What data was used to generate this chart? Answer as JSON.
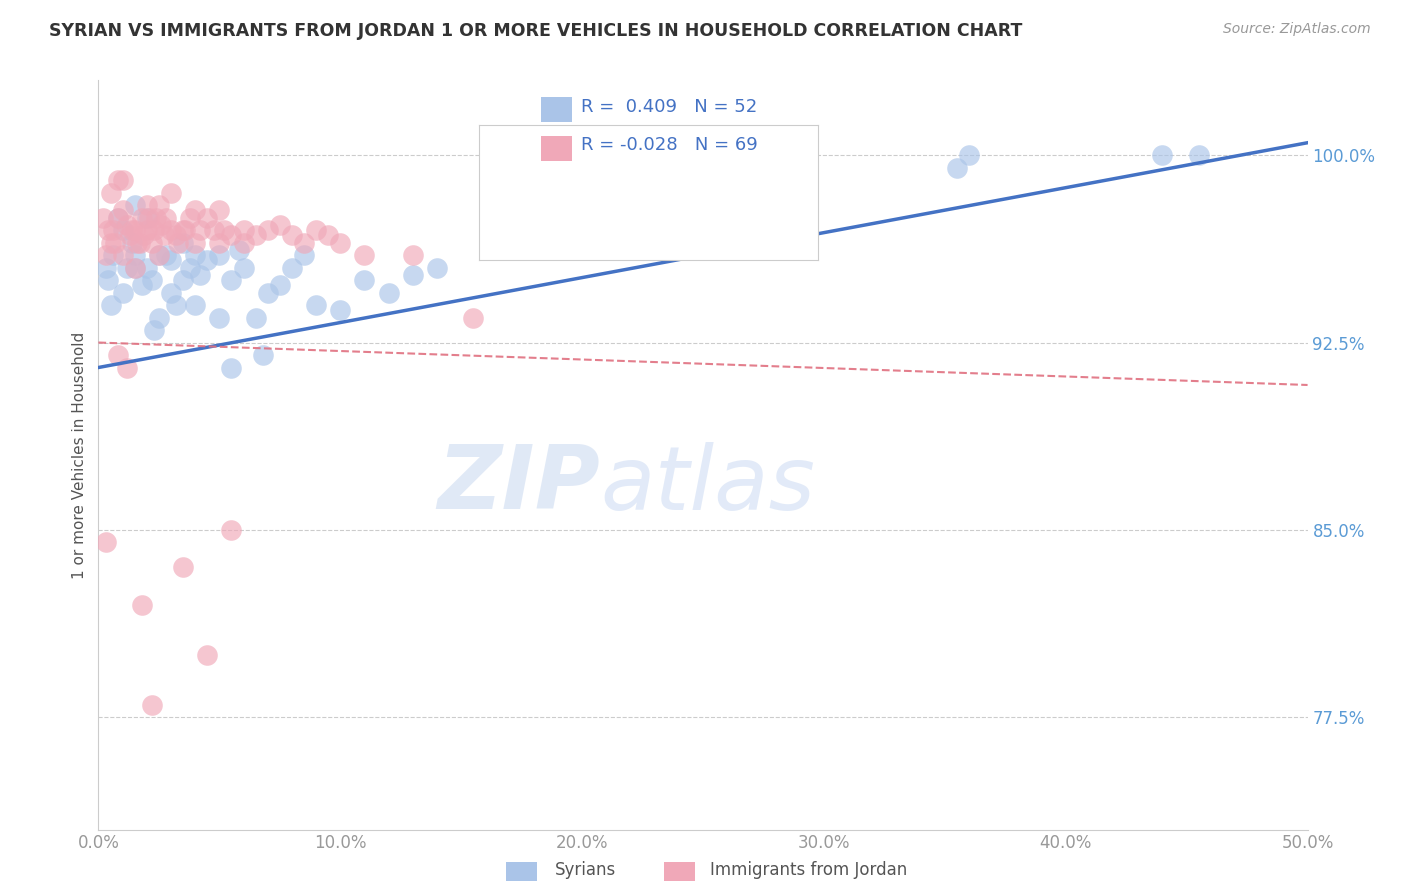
{
  "title": "SYRIAN VS IMMIGRANTS FROM JORDAN 1 OR MORE VEHICLES IN HOUSEHOLD CORRELATION CHART",
  "source": "Source: ZipAtlas.com",
  "ylabel": "1 or more Vehicles in Household",
  "xlim": [
    0.0,
    50.0
  ],
  "ylim": [
    73.0,
    103.0
  ],
  "xtick_labels": [
    "0.0%",
    "10.0%",
    "20.0%",
    "30.0%",
    "40.0%",
    "50.0%"
  ],
  "xtick_values": [
    0.0,
    10.0,
    20.0,
    30.0,
    40.0,
    50.0
  ],
  "ytick_labels": [
    "77.5%",
    "85.0%",
    "92.5%",
    "100.0%"
  ],
  "ytick_values": [
    77.5,
    85.0,
    92.5,
    100.0
  ],
  "syrians_R": 0.409,
  "syrians_N": 52,
  "jordan_R": -0.028,
  "jordan_N": 69,
  "syrians_color": "#aac4e8",
  "jordan_color": "#f0a8b8",
  "syrians_line_color": "#4472c4",
  "jordan_line_color": "#e07080",
  "watermark_color": "#ddeeff",
  "syrians_x": [
    0.4,
    0.6,
    0.8,
    1.0,
    1.0,
    1.2,
    1.4,
    1.5,
    1.5,
    1.8,
    2.0,
    2.0,
    2.2,
    2.5,
    2.5,
    2.8,
    3.0,
    3.0,
    3.2,
    3.5,
    3.8,
    4.0,
    4.0,
    4.2,
    4.5,
    5.0,
    5.0,
    5.5,
    5.8,
    6.0,
    6.5,
    7.0,
    7.5,
    8.0,
    9.0,
    10.0,
    11.0,
    12.0,
    13.0,
    14.0,
    5.5,
    6.8,
    35.5,
    36.0,
    44.0,
    45.5,
    0.3,
    0.5,
    1.5,
    2.3,
    3.5,
    8.5
  ],
  "syrians_y": [
    95.0,
    96.0,
    97.5,
    94.5,
    97.0,
    95.5,
    96.5,
    95.5,
    98.0,
    94.8,
    95.5,
    97.5,
    95.0,
    93.5,
    96.0,
    96.0,
    94.5,
    95.8,
    94.0,
    95.0,
    95.5,
    96.0,
    94.0,
    95.2,
    95.8,
    93.5,
    96.0,
    95.0,
    96.2,
    95.5,
    93.5,
    94.5,
    94.8,
    95.5,
    94.0,
    93.8,
    95.0,
    94.5,
    95.2,
    95.5,
    91.5,
    92.0,
    99.5,
    100.0,
    100.0,
    100.0,
    95.5,
    94.0,
    96.0,
    93.0,
    96.5,
    96.0
  ],
  "jordan_x": [
    0.2,
    0.3,
    0.4,
    0.5,
    0.5,
    0.6,
    0.7,
    0.8,
    0.8,
    1.0,
    1.0,
    1.0,
    1.2,
    1.3,
    1.4,
    1.5,
    1.5,
    1.6,
    1.7,
    1.8,
    1.9,
    2.0,
    2.0,
    2.1,
    2.2,
    2.3,
    2.4,
    2.5,
    2.5,
    2.6,
    2.7,
    2.8,
    3.0,
    3.0,
    3.2,
    3.3,
    3.5,
    3.6,
    3.8,
    4.0,
    4.0,
    4.2,
    4.5,
    4.8,
    5.0,
    5.0,
    5.2,
    5.5,
    6.0,
    6.0,
    6.5,
    7.0,
    7.5,
    8.0,
    8.5,
    9.0,
    9.5,
    10.0,
    11.0,
    13.0,
    15.5,
    5.5,
    0.3,
    3.5,
    1.8,
    4.5,
    2.2,
    0.8,
    1.2
  ],
  "jordan_y": [
    97.5,
    96.0,
    97.0,
    96.5,
    98.5,
    97.0,
    96.5,
    97.5,
    99.0,
    96.0,
    97.8,
    99.0,
    97.2,
    96.8,
    97.0,
    95.5,
    97.0,
    96.5,
    96.5,
    97.5,
    96.8,
    97.0,
    98.0,
    97.5,
    96.5,
    97.0,
    97.5,
    96.0,
    98.0,
    97.2,
    96.8,
    97.5,
    97.0,
    98.5,
    96.8,
    96.5,
    97.0,
    97.0,
    97.5,
    96.5,
    97.8,
    97.0,
    97.5,
    97.0,
    96.5,
    97.8,
    97.0,
    96.8,
    97.0,
    96.5,
    96.8,
    97.0,
    97.2,
    96.8,
    96.5,
    97.0,
    96.8,
    96.5,
    96.0,
    96.0,
    93.5,
    85.0,
    84.5,
    83.5,
    82.0,
    80.0,
    78.0,
    92.0,
    91.5
  ],
  "s_line_x0": 0.0,
  "s_line_y0": 91.5,
  "s_line_x1": 50.0,
  "s_line_y1": 100.5,
  "j_line_x0": 0.0,
  "j_line_y0": 92.5,
  "j_line_x1": 50.0,
  "j_line_y1": 90.8
}
